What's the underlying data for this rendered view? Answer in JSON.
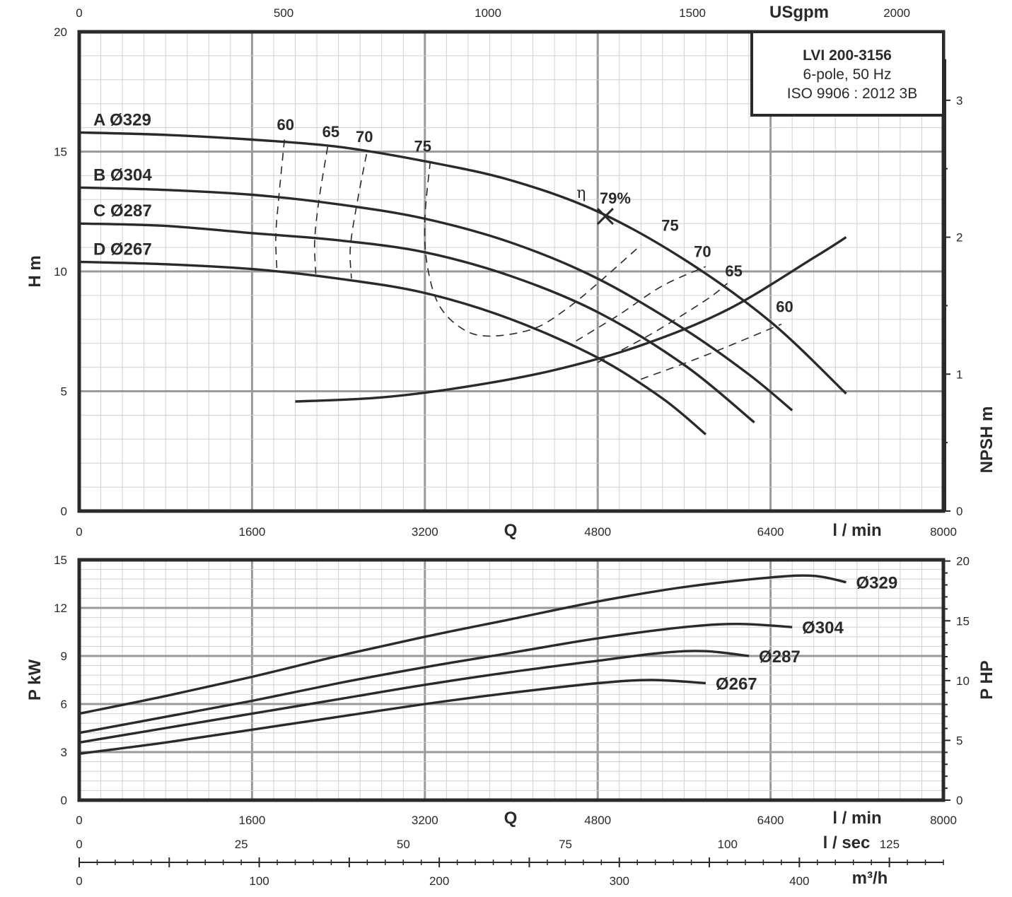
{
  "legend": {
    "model": "LVI 200-3156",
    "line1": "6-pole, 50 Hz",
    "line2": "ISO 9906 : 2012 3B"
  },
  "chart_data": [
    {
      "type": "line",
      "name": "head",
      "x_unit": "l / min",
      "xlim": [
        0,
        8000
      ],
      "x_ticks": [
        "0",
        "1600",
        "3200",
        "4800",
        "6400",
        "8000"
      ],
      "x_axis_label": "Q",
      "top_axis": {
        "unit": "USgpm",
        "ticks": [
          "0",
          "500",
          "1000",
          "1500",
          "2000"
        ],
        "max": 2114
      },
      "ylabel": "H m",
      "ylim": [
        0,
        20
      ],
      "y_ticks": [
        "0",
        "5",
        "10",
        "15",
        "20"
      ],
      "right_axis": {
        "label": "NPSH m",
        "ticks": [
          "0",
          "1",
          "2",
          "3"
        ],
        "lim": [
          0,
          3.5
        ]
      },
      "grid": true,
      "series": [
        {
          "name": "A Ø329",
          "x": [
            0,
            800,
            1600,
            2400,
            3200,
            4000,
            4800,
            5600,
            6400,
            7100
          ],
          "y": [
            15.8,
            15.7,
            15.5,
            15.2,
            14.6,
            13.8,
            12.5,
            10.5,
            7.9,
            4.9
          ]
        },
        {
          "name": "B Ø304",
          "x": [
            0,
            800,
            1600,
            2400,
            3200,
            4000,
            4800,
            5600,
            6200,
            6600
          ],
          "y": [
            13.5,
            13.4,
            13.2,
            12.8,
            12.2,
            11.2,
            9.7,
            7.6,
            5.7,
            4.2
          ]
        },
        {
          "name": "C Ø287",
          "x": [
            0,
            800,
            1600,
            2400,
            3200,
            4000,
            4800,
            5600,
            6250
          ],
          "y": [
            12.0,
            11.9,
            11.6,
            11.3,
            10.8,
            9.8,
            8.3,
            6.1,
            3.7
          ]
        },
        {
          "name": "D Ø267",
          "x": [
            0,
            800,
            1600,
            2400,
            3200,
            4000,
            4800,
            5400,
            5800
          ],
          "y": [
            10.4,
            10.3,
            10.1,
            9.7,
            9.1,
            8.0,
            6.4,
            4.7,
            3.2
          ]
        }
      ],
      "npsh": {
        "x": [
          2000,
          2800,
          3600,
          4400,
          5200,
          6000,
          6800,
          7100
        ],
        "y": [
          0.8,
          0.83,
          0.91,
          1.03,
          1.21,
          1.47,
          1.85,
          2.0
        ]
      },
      "efficiency": [
        {
          "label": "60",
          "x": [
            1900,
            1850,
            1820,
            1830
          ],
          "y": [
            15.5,
            13.2,
            11.5,
            10.1
          ]
        },
        {
          "label": "65",
          "x": [
            2300,
            2220,
            2180,
            2190
          ],
          "y": [
            15.2,
            13.0,
            11.3,
            9.9
          ]
        },
        {
          "label": "70",
          "x": [
            2660,
            2570,
            2510,
            2520
          ],
          "y": [
            14.9,
            12.8,
            11.0,
            9.7
          ]
        },
        {
          "label": "75",
          "x": [
            3250,
            3200,
            3220,
            3330,
            3550,
            3800,
            4200,
            4500,
            4800,
            5200
          ],
          "y": [
            14.6,
            12.2,
            10.3,
            8.6,
            7.6,
            7.3,
            7.6,
            8.4,
            9.5,
            11.1
          ]
        },
        {
          "label": "70",
          "x": [
            4600,
            5000,
            5400,
            5800
          ],
          "y": [
            7.1,
            8.2,
            9.4,
            10.2
          ]
        },
        {
          "label": "65",
          "x": [
            4800,
            5300,
            5800,
            6000
          ],
          "y": [
            6.2,
            7.4,
            8.8,
            9.5
          ]
        },
        {
          "label": "60",
          "x": [
            5200,
            5800,
            6500
          ],
          "y": [
            5.5,
            6.5,
            7.8
          ]
        }
      ],
      "eff_labels": [
        {
          "text": "60",
          "x": 1910,
          "y": 15.9
        },
        {
          "text": "65",
          "x": 2330,
          "y": 15.6
        },
        {
          "text": "70",
          "x": 2640,
          "y": 15.4
        },
        {
          "text": "75",
          "x": 3180,
          "y": 15.0
        },
        {
          "text": "75",
          "x": 5470,
          "y": 11.7
        },
        {
          "text": "70",
          "x": 5770,
          "y": 10.6
        },
        {
          "text": "65",
          "x": 6060,
          "y": 9.8
        },
        {
          "text": "60",
          "x": 6530,
          "y": 8.3
        }
      ],
      "best_efficiency": {
        "symbol": "η",
        "label": "79%",
        "x": 4870,
        "y": 12.3
      }
    },
    {
      "type": "line",
      "name": "power",
      "x_unit": "l / min",
      "xlim": [
        0,
        8000
      ],
      "x_ticks": [
        "0",
        "1600",
        "3200",
        "4800",
        "6400",
        "8000"
      ],
      "x_axis_label": "Q",
      "ylabel": "P kW",
      "ylim": [
        0,
        15
      ],
      "y_ticks": [
        "0",
        "3",
        "6",
        "9",
        "12",
        "15"
      ],
      "right_axis": {
        "label": "P HP",
        "ticks": [
          "0",
          "5",
          "10",
          "15",
          "20"
        ],
        "lim": [
          0,
          20.1
        ]
      },
      "grid": true,
      "series": [
        {
          "name": "Ø329",
          "x": [
            0,
            800,
            1600,
            2400,
            3200,
            4000,
            4800,
            5600,
            6400,
            6800,
            7100
          ],
          "y": [
            5.4,
            6.5,
            7.7,
            9.0,
            10.2,
            11.3,
            12.4,
            13.3,
            13.9,
            14.0,
            13.6
          ]
        },
        {
          "name": "Ø304",
          "x": [
            0,
            800,
            1600,
            2400,
            3200,
            4000,
            4800,
            5600,
            6100,
            6600
          ],
          "y": [
            4.2,
            5.2,
            6.2,
            7.3,
            8.3,
            9.2,
            10.1,
            10.8,
            11.0,
            10.8
          ]
        },
        {
          "name": "Ø287",
          "x": [
            0,
            800,
            1600,
            2400,
            3200,
            4000,
            4800,
            5400,
            5800,
            6200
          ],
          "y": [
            3.6,
            4.5,
            5.4,
            6.3,
            7.2,
            8.0,
            8.7,
            9.2,
            9.3,
            9.0
          ]
        },
        {
          "name": "Ø267",
          "x": [
            0,
            800,
            1600,
            2400,
            3200,
            4000,
            4800,
            5300,
            5800
          ],
          "y": [
            2.9,
            3.6,
            4.4,
            5.2,
            6.0,
            6.7,
            7.3,
            7.5,
            7.3
          ]
        }
      ]
    }
  ],
  "bottom_axes": [
    {
      "unit": "l / sec",
      "ticks": [
        "0",
        "25",
        "50",
        "75",
        "100",
        "125"
      ],
      "max": 133.3
    },
    {
      "unit": "m³/h",
      "ticks": [
        "0",
        "100",
        "200",
        "300",
        "400"
      ],
      "max": 480
    }
  ]
}
